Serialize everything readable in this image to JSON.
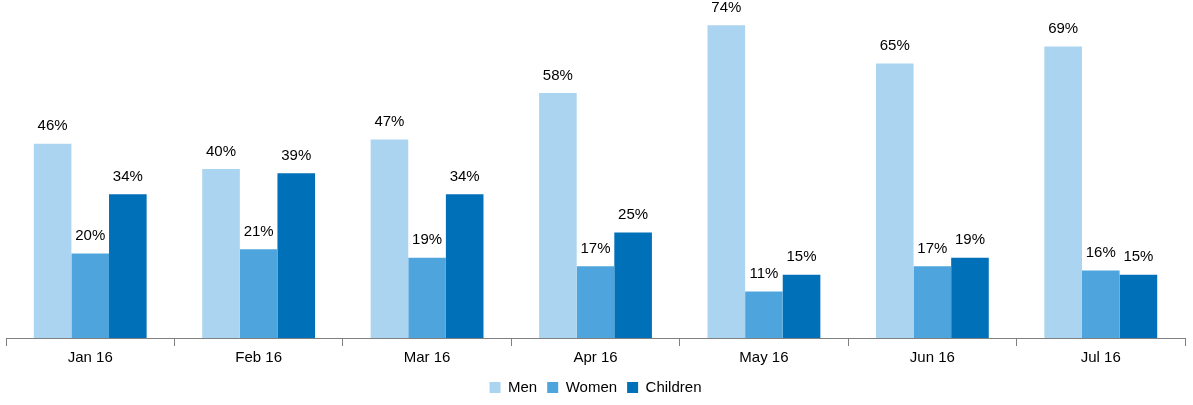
{
  "chart_data": {
    "type": "bar",
    "categories": [
      "Jan 16",
      "Feb 16",
      "Mar 16",
      "Apr 16",
      "May 16",
      "Jun 16",
      "Jul 16"
    ],
    "series": [
      {
        "name": "Men",
        "color": "#abd4f0",
        "values": [
          46,
          40,
          47,
          58,
          74,
          65,
          69
        ],
        "value_labels": [
          "46%",
          "40%",
          "47%",
          "58%",
          "74%",
          "65%",
          "69%"
        ]
      },
      {
        "name": "Women",
        "color": "#4ea5dd",
        "values": [
          20,
          21,
          19,
          17,
          11,
          17,
          16
        ],
        "value_labels": [
          "20%",
          "21%",
          "19%",
          "17%",
          "11%",
          "17%",
          "16%"
        ]
      },
      {
        "name": "Children",
        "color": "#0070b8",
        "values": [
          34,
          39,
          34,
          25,
          15,
          19,
          15
        ],
        "value_labels": [
          "34%",
          "39%",
          "34%",
          "25%",
          "15%",
          "19%",
          "15%"
        ]
      }
    ],
    "legend": "bottom",
    "grid": false,
    "tick_labels": "x"
  }
}
